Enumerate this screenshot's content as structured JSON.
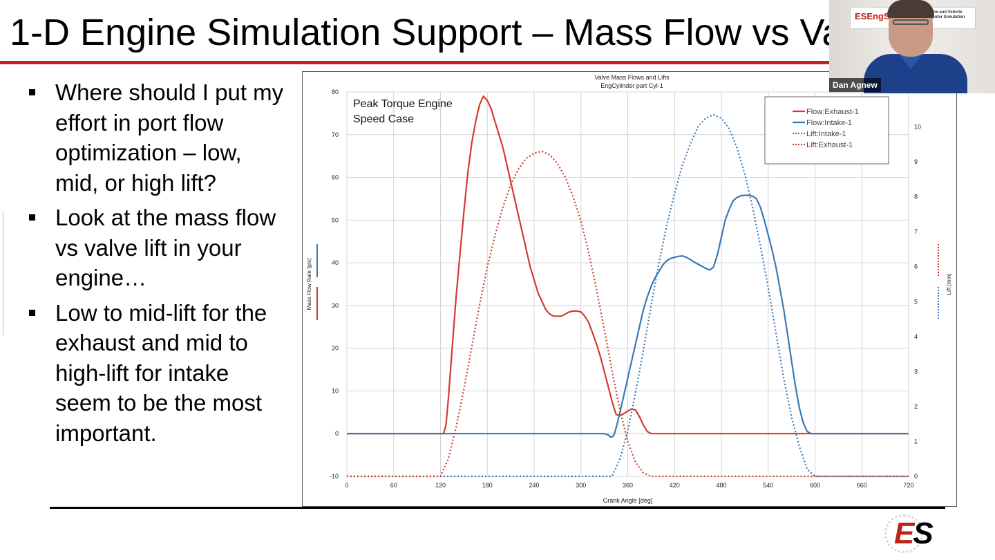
{
  "slide": {
    "title": "1-D Engine Simulation Support – Mass Flow vs Va",
    "bullets": [
      "Where should I put my effort in port flow optimization – low, mid, or high lift?",
      "Look at the mass flow vs valve lift in your engine…",
      "Low to mid-lift for the exhaust and mid to high-lift for intake seem to be the most important."
    ],
    "accent_color": "#c0231c"
  },
  "video": {
    "presenter_name": "Dan Agnew",
    "poster_logo": "ESEngSi",
    "poster_text": "ine and Vehicle\nputer Simulation"
  },
  "logo": {
    "e": "E",
    "s": "S"
  },
  "chart_data": {
    "type": "line",
    "title": "Valve Mass Flows and Lifts",
    "subtitle": "EngCylinder part Cyl-1",
    "annotation": "Peak Torque Engine\nSpeed Case",
    "xlabel": "Crank Angle [deg]",
    "ylabel": "Mass Flow Rate [g/s]",
    "y2label": "Lift [mm]",
    "xlim": [
      0,
      720
    ],
    "ylim": [
      -10,
      80
    ],
    "y2lim": [
      0,
      11
    ],
    "xticks": [
      0,
      60,
      120,
      180,
      240,
      300,
      360,
      420,
      480,
      540,
      600,
      660,
      720
    ],
    "yticks": [
      -10,
      0,
      10,
      20,
      30,
      40,
      50,
      60,
      70,
      80
    ],
    "y2ticks": [
      0,
      1,
      2,
      3,
      4,
      5,
      6,
      7,
      8,
      9,
      10
    ],
    "grid": true,
    "legend_position": "top-right",
    "series": [
      {
        "name": "Flow:Exhaust-1",
        "axis": "left",
        "style": "solid",
        "color": "#d23a2e",
        "x": [
          0,
          124,
          127,
          130,
          135,
          140,
          145,
          150,
          155,
          160,
          165,
          170,
          175,
          180,
          185,
          190,
          195,
          200,
          205,
          210,
          215,
          220,
          225,
          230,
          235,
          240,
          245,
          250,
          255,
          260,
          265,
          270,
          275,
          280,
          285,
          290,
          295,
          300,
          305,
          310,
          315,
          320,
          325,
          330,
          335,
          340,
          345,
          350,
          355,
          360,
          365,
          370,
          375,
          380,
          385,
          390,
          720
        ],
        "y": [
          0,
          0,
          2,
          8,
          20,
          32,
          42,
          52,
          61,
          68,
          73,
          77,
          79,
          78,
          76,
          73,
          70,
          67,
          63,
          59,
          55,
          51,
          47,
          43,
          39,
          36,
          33,
          31,
          29,
          28,
          27.5,
          27.5,
          27.5,
          28,
          28.5,
          28.7,
          28.7,
          28.5,
          27.5,
          26,
          23.5,
          21,
          18,
          14.5,
          11,
          7.5,
          4.5,
          4.2,
          4.7,
          5.3,
          5.8,
          5.5,
          4,
          2,
          0.5,
          0,
          0
        ]
      },
      {
        "name": "Flow:Intake-1",
        "axis": "left",
        "style": "solid",
        "color": "#3a78b4",
        "x": [
          0,
          330,
          335,
          338,
          341,
          343,
          346,
          350,
          355,
          360,
          365,
          370,
          375,
          380,
          385,
          390,
          395,
          400,
          405,
          410,
          415,
          420,
          425,
          430,
          435,
          440,
          445,
          450,
          455,
          460,
          465,
          470,
          475,
          480,
          485,
          490,
          495,
          500,
          505,
          510,
          515,
          520,
          525,
          530,
          535,
          540,
          545,
          550,
          555,
          560,
          565,
          570,
          575,
          580,
          585,
          590,
          595,
          600,
          605,
          720
        ],
        "y": [
          0,
          0,
          -0.3,
          -0.8,
          -0.7,
          0,
          2,
          5,
          9,
          13,
          17,
          21,
          25,
          29,
          32,
          34.5,
          36.5,
          38,
          39.5,
          40.5,
          41,
          41.3,
          41.5,
          41.6,
          41.3,
          40.8,
          40.2,
          39.7,
          39.2,
          38.7,
          38.3,
          39,
          42,
          46,
          50,
          52.5,
          54.5,
          55.3,
          55.7,
          55.8,
          55.8,
          55.6,
          55,
          53,
          50,
          46.5,
          43,
          39,
          34,
          29,
          23,
          17,
          11,
          6,
          2.5,
          0.5,
          0,
          0,
          0,
          0
        ]
      },
      {
        "name": "Lift:Intake-1",
        "axis": "right",
        "style": "dotted",
        "color": "#3a78b4",
        "x": [
          0,
          340,
          350,
          360,
          370,
          380,
          390,
          400,
          410,
          420,
          430,
          440,
          450,
          460,
          470,
          480,
          490,
          500,
          510,
          520,
          530,
          540,
          550,
          560,
          570,
          580,
          590,
          600,
          720
        ],
        "y": [
          0,
          0,
          0.5,
          1.3,
          2.4,
          3.6,
          4.9,
          6.1,
          7.2,
          8.1,
          8.9,
          9.5,
          10.0,
          10.25,
          10.35,
          10.25,
          9.95,
          9.4,
          8.65,
          7.7,
          6.6,
          5.4,
          4.1,
          2.8,
          1.7,
          0.85,
          0.2,
          0,
          0
        ]
      },
      {
        "name": "Lift:Exhaust-1",
        "axis": "right",
        "style": "dotted",
        "color": "#d23a2e",
        "x": [
          0,
          120,
          130,
          140,
          150,
          160,
          170,
          180,
          190,
          200,
          210,
          220,
          230,
          240,
          250,
          260,
          270,
          280,
          290,
          300,
          310,
          320,
          330,
          340,
          350,
          360,
          370,
          380,
          390,
          720
        ],
        "y": [
          0,
          0,
          0.5,
          1.4,
          2.5,
          3.7,
          4.9,
          6.0,
          6.9,
          7.7,
          8.35,
          8.8,
          9.1,
          9.25,
          9.3,
          9.2,
          8.95,
          8.55,
          8.0,
          7.3,
          6.4,
          5.35,
          4.2,
          3.0,
          1.9,
          1.0,
          0.4,
          0.1,
          0,
          0
        ]
      }
    ]
  }
}
